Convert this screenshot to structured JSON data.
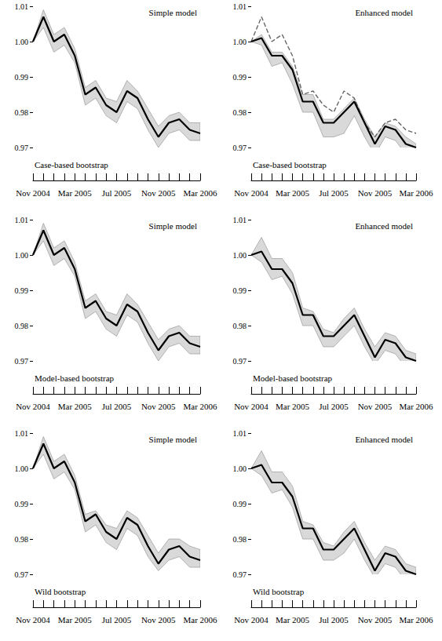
{
  "chart_data": [
    {
      "type": "line",
      "title": "Simple model",
      "subtitle": "Case-based bootstrap",
      "categories": [
        "Nov 2004",
        null,
        null,
        null,
        "Mar 2005",
        null,
        null,
        null,
        "Jul 2005",
        null,
        null,
        null,
        "Nov 2005",
        null,
        null,
        null,
        "Mar 2006"
      ],
      "ylim": [
        0.97,
        1.01
      ],
      "yticks": [
        0.97,
        0.98,
        0.99,
        {
          "value": 1.0,
          "label": "1.00"
        },
        1.01
      ],
      "grid": false,
      "series": [
        {
          "color": "#000000",
          "line_style": "solid",
          "values": [
            1.0,
            1.007,
            1.0,
            1.002,
            0.996,
            0.985,
            0.987,
            0.982,
            0.98,
            0.986,
            0.984,
            0.978,
            0.973,
            0.977,
            0.978,
            0.975,
            0.974
          ],
          "lower": [
            1.0,
            1.004,
            0.997,
            0.999,
            0.994,
            0.982,
            0.984,
            0.979,
            0.977,
            0.983,
            0.981,
            0.975,
            0.97,
            0.974,
            0.975,
            0.972,
            0.972
          ],
          "upper": [
            1.0,
            1.009,
            1.002,
            1.004,
            0.998,
            0.987,
            0.989,
            0.984,
            0.983,
            0.989,
            0.986,
            0.981,
            0.976,
            0.979,
            0.98,
            0.977,
            0.977
          ]
        }
      ]
    },
    {
      "type": "line",
      "title": "Enhanced model",
      "subtitle": "Case-based bootstrap",
      "categories": [
        "Nov 2004",
        null,
        null,
        null,
        "Mar 2005",
        null,
        null,
        null,
        "Jul 2005",
        null,
        null,
        null,
        "Nov 2005",
        null,
        null,
        null,
        "Mar 2006"
      ],
      "ylim": [
        0.97,
        1.01
      ],
      "yticks": [
        0.97,
        0.98,
        0.99,
        {
          "value": 1.0,
          "label": "1.00"
        },
        1.01
      ],
      "grid": false,
      "series": [
        {
          "color": "#000000",
          "line_style": "solid",
          "values": [
            1.0,
            1.001,
            0.996,
            0.996,
            0.992,
            0.983,
            0.983,
            0.977,
            0.977,
            0.98,
            0.983,
            0.977,
            0.971,
            0.976,
            0.975,
            0.971,
            0.97
          ],
          "lower": [
            1.0,
            0.999,
            0.993,
            0.994,
            0.988,
            0.98,
            0.98,
            0.973,
            0.973,
            0.974,
            0.979,
            0.973,
            0.968,
            0.973,
            0.972,
            0.968,
            0.967
          ],
          "upper": [
            1.0,
            1.002,
            0.997,
            0.997,
            0.993,
            0.985,
            0.985,
            0.978,
            0.978,
            0.981,
            0.984,
            0.978,
            0.973,
            0.977,
            0.976,
            0.973,
            0.971
          ]
        },
        {
          "color": "#666666",
          "line_style": "dashed",
          "values": [
            1.0,
            1.007,
            1.0,
            1.002,
            0.996,
            0.985,
            0.986,
            0.982,
            0.98,
            0.986,
            0.984,
            0.977,
            0.973,
            0.977,
            0.978,
            0.975,
            0.974
          ]
        }
      ]
    },
    {
      "type": "line",
      "title": "Simple model",
      "subtitle": "Model-based bootstrap",
      "categories": [
        "Nov 2004",
        null,
        null,
        null,
        "Mar 2005",
        null,
        null,
        null,
        "Jul 2005",
        null,
        null,
        null,
        "Nov 2005",
        null,
        null,
        null,
        "Mar 2006"
      ],
      "ylim": [
        0.97,
        1.01
      ],
      "yticks": [
        0.97,
        0.98,
        0.99,
        {
          "value": 1.0,
          "label": "1.00"
        },
        1.01
      ],
      "grid": false,
      "series": [
        {
          "color": "#000000",
          "line_style": "solid",
          "values": [
            1.0,
            1.007,
            1.0,
            1.002,
            0.996,
            0.985,
            0.987,
            0.982,
            0.98,
            0.986,
            0.984,
            0.978,
            0.973,
            0.977,
            0.978,
            0.975,
            0.974
          ],
          "lower": [
            1.0,
            1.004,
            0.997,
            0.999,
            0.994,
            0.982,
            0.984,
            0.979,
            0.977,
            0.983,
            0.981,
            0.975,
            0.97,
            0.974,
            0.975,
            0.972,
            0.972
          ],
          "upper": [
            1.0,
            1.009,
            1.002,
            1.004,
            0.998,
            0.987,
            0.989,
            0.984,
            0.983,
            0.989,
            0.986,
            0.981,
            0.976,
            0.979,
            0.98,
            0.977,
            0.977
          ]
        }
      ]
    },
    {
      "type": "line",
      "title": "Enhanced model",
      "subtitle": "Model-based bootstrap",
      "categories": [
        "Nov 2004",
        null,
        null,
        null,
        "Mar 2005",
        null,
        null,
        null,
        "Jul 2005",
        null,
        null,
        null,
        "Nov 2005",
        null,
        null,
        null,
        "Mar 2006"
      ],
      "ylim": [
        0.97,
        1.01
      ],
      "yticks": [
        0.97,
        0.98,
        0.99,
        {
          "value": 1.0,
          "label": "1.00"
        },
        1.01
      ],
      "grid": false,
      "series": [
        {
          "color": "#000000",
          "line_style": "solid",
          "values": [
            1.0,
            1.001,
            0.996,
            0.996,
            0.992,
            0.983,
            0.983,
            0.977,
            0.977,
            0.98,
            0.983,
            0.977,
            0.971,
            0.976,
            0.975,
            0.971,
            0.97
          ],
          "lower": [
            1.0,
            0.998,
            0.993,
            0.994,
            0.989,
            0.98,
            0.98,
            0.974,
            0.974,
            0.977,
            0.98,
            0.974,
            0.969,
            0.973,
            0.972,
            0.968,
            0.967
          ],
          "upper": [
            1.0,
            1.005,
            0.999,
            0.999,
            0.995,
            0.985,
            0.984,
            0.979,
            0.978,
            0.982,
            0.985,
            0.979,
            0.974,
            0.978,
            0.977,
            0.973,
            0.972
          ]
        }
      ]
    },
    {
      "type": "line",
      "title": "Simple model",
      "subtitle": "Wild bootstrap",
      "categories": [
        "Nov 2004",
        null,
        null,
        null,
        "Mar 2005",
        null,
        null,
        null,
        "Jul 2005",
        null,
        null,
        null,
        "Nov 2005",
        null,
        null,
        null,
        "Mar 2006"
      ],
      "ylim": [
        0.97,
        1.01
      ],
      "yticks": [
        0.97,
        0.98,
        0.99,
        {
          "value": 1.0,
          "label": "1.00"
        },
        1.01
      ],
      "grid": false,
      "series": [
        {
          "color": "#000000",
          "line_style": "solid",
          "values": [
            1.0,
            1.007,
            1.0,
            1.002,
            0.996,
            0.985,
            0.987,
            0.982,
            0.98,
            0.986,
            0.984,
            0.978,
            0.973,
            0.977,
            0.978,
            0.975,
            0.974
          ],
          "lower": [
            1.0,
            1.004,
            0.997,
            0.999,
            0.994,
            0.982,
            0.984,
            0.979,
            0.977,
            0.983,
            0.981,
            0.975,
            0.971,
            0.974,
            0.975,
            0.972,
            0.972
          ],
          "upper": [
            1.0,
            1.009,
            1.002,
            1.004,
            0.998,
            0.987,
            0.988,
            0.984,
            0.983,
            0.988,
            0.986,
            0.981,
            0.976,
            0.98,
            0.98,
            0.978,
            0.977
          ]
        }
      ]
    },
    {
      "type": "line",
      "title": "Enhanced model",
      "subtitle": "Wild bootstrap",
      "categories": [
        "Nov 2004",
        null,
        null,
        null,
        "Mar 2005",
        null,
        null,
        null,
        "Jul 2005",
        null,
        null,
        null,
        "Nov 2005",
        null,
        null,
        null,
        "Mar 2006"
      ],
      "ylim": [
        0.97,
        1.01
      ],
      "yticks": [
        0.97,
        0.98,
        0.99,
        {
          "value": 1.0,
          "label": "1.00"
        },
        1.01
      ],
      "grid": false,
      "series": [
        {
          "color": "#000000",
          "line_style": "solid",
          "values": [
            1.0,
            1.001,
            0.996,
            0.996,
            0.992,
            0.983,
            0.983,
            0.977,
            0.977,
            0.98,
            0.983,
            0.977,
            0.971,
            0.976,
            0.975,
            0.971,
            0.97
          ],
          "lower": [
            1.0,
            0.998,
            0.993,
            0.994,
            0.989,
            0.98,
            0.98,
            0.974,
            0.974,
            0.976,
            0.98,
            0.974,
            0.969,
            0.973,
            0.972,
            0.968,
            0.967
          ],
          "upper": [
            1.0,
            1.005,
            0.999,
            0.999,
            0.995,
            0.985,
            0.984,
            0.979,
            0.978,
            0.982,
            0.985,
            0.979,
            0.974,
            0.978,
            0.977,
            0.973,
            0.972
          ]
        }
      ]
    }
  ]
}
